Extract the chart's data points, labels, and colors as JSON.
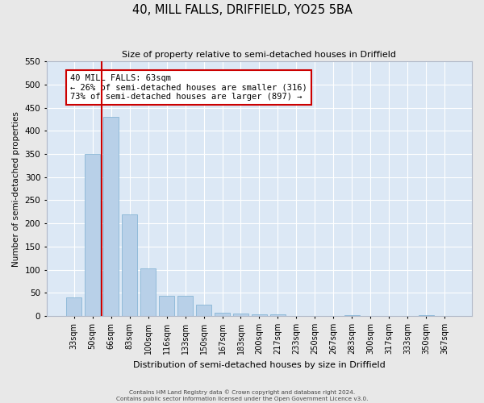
{
  "title": "40, MILL FALLS, DRIFFIELD, YO25 5BA",
  "subtitle": "Size of property relative to semi-detached houses in Driffield",
  "xlabel": "Distribution of semi-detached houses by size in Driffield",
  "ylabel": "Number of semi-detached properties",
  "bar_categories": [
    "33sqm",
    "50sqm",
    "66sqm",
    "83sqm",
    "100sqm",
    "116sqm",
    "133sqm",
    "150sqm",
    "167sqm",
    "183sqm",
    "200sqm",
    "217sqm",
    "233sqm",
    "250sqm",
    "267sqm",
    "283sqm",
    "300sqm",
    "317sqm",
    "333sqm",
    "350sqm",
    "367sqm"
  ],
  "bar_values": [
    40,
    350,
    430,
    220,
    103,
    44,
    44,
    25,
    8,
    6,
    4,
    4,
    0,
    1,
    0,
    2,
    0,
    0,
    0,
    2,
    0
  ],
  "bar_color": "#b8d0e8",
  "bar_edge_color": "#7aaed0",
  "bg_color": "#dce8f5",
  "grid_color": "#ffffff",
  "ylim": [
    0,
    550
  ],
  "yticks": [
    0,
    50,
    100,
    150,
    200,
    250,
    300,
    350,
    400,
    450,
    500,
    550
  ],
  "vline_color": "#cc0000",
  "vline_pos": 1.5,
  "annotation_title": "40 MILL FALLS: 63sqm",
  "annotation_line1": "← 26% of semi-detached houses are smaller (316)",
  "annotation_line2": "73% of semi-detached houses are larger (897) →",
  "annotation_box_color": "#cc0000",
  "footer1": "Contains HM Land Registry data © Crown copyright and database right 2024.",
  "footer2": "Contains public sector information licensed under the Open Government Licence v3.0."
}
